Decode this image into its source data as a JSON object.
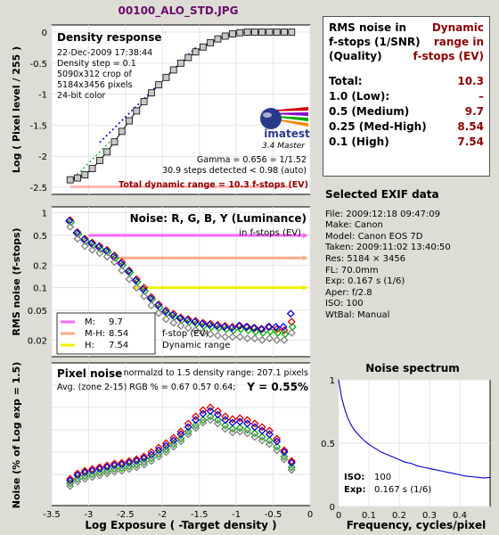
{
  "file_title": "00100_ALO_STD.JPG",
  "colors": {
    "background": "#ddddd5",
    "title": "#6a0a6a",
    "accent_red": "#8b0000",
    "red": "#e00000",
    "green": "#00b000",
    "blue": "#0000e0",
    "gray": "#808080",
    "magenta": "#ff66ff",
    "salmon": "#ffaa88",
    "yellow": "#f0f000"
  },
  "density_panel": {
    "title": "Density response",
    "info_lines": [
      "22-Dec-2009 17:38:44",
      "Density step = 0.1",
      "5090x312 crop of",
      "5184x3456 pixels",
      "24-bit color"
    ],
    "logo_text": "imatest",
    "logo_sub": "3.4  Master",
    "gamma_text": "Gamma = 0.656 = 1/1.52",
    "steps_text": "30.9 steps detected < 0.98 (auto)",
    "dynamic_range_text": "Total dynamic range = 10.3 f-stops (EV)",
    "ylabel": "Log ( Pixel level / 255 )"
  },
  "rms_table": {
    "header_left": [
      "RMS noise in",
      "f-stops (1/SNR)",
      "(Quality)"
    ],
    "header_right": [
      "Dynamic",
      "range in",
      "f-stops (EV)"
    ],
    "rows": [
      {
        "label": "Total:",
        "value": "10.3"
      },
      {
        "label": "1.0   (Low):",
        "value": "–"
      },
      {
        "label": "0.5   (Medium)",
        "value": "9.7"
      },
      {
        "label": "0.25 (Med-High)",
        "value": "8.54"
      },
      {
        "label": "0.1   (High)",
        "value": "7.54"
      }
    ]
  },
  "noise_panel": {
    "title": "Noise: R, G, B, Y (Luminance)",
    "subtitle": "in f-stops (EV)",
    "ylabel": "RMS noise (f-stops)",
    "legend": [
      {
        "label": "M:",
        "value": "9.7",
        "color": "#ff66ff"
      },
      {
        "label": "M-H:",
        "value": "8.54",
        "color": "#ffaa88"
      },
      {
        "label": "H:",
        "value": "7.54",
        "color": "#f0f000"
      }
    ],
    "legend_note1": "f-stop (EV)",
    "legend_note2": "Dynamic range"
  },
  "exif": {
    "title": "Selected EXIF data",
    "lines": [
      "File:  2009:12:18 09:47:09",
      "Make:  Canon",
      "Model: Canon EOS 7D",
      "Taken:  2009:11:02 13:40:50",
      "Res:   5184 × 3456",
      "FL:  70.0mm",
      "Exp:  0.167 s  (1/6)",
      "Aper:  f/2.8",
      "ISO:   100",
      "WtBal: Manual"
    ]
  },
  "pixel_panel": {
    "title": "Pixel noise",
    "norm_text": "normalzd to 1.5 density range: 207.1 pixels",
    "avg_text": "Avg. (zone 2-15) RGB % = 0.67  0.57  0.64;",
    "y_text": "Y = 0.55%",
    "ylabel": "Noise (% of Log exp = 1.5)",
    "xlabel": "Log Exposure ( -Target density )"
  },
  "spectrum_panel": {
    "title": "Noise spectrum",
    "iso_label": "ISO:",
    "iso_value": "100",
    "exp_label": "Exp:",
    "exp_value": "0.167 s  (1/6)",
    "xlabel": "Frequency, cycles/pixel"
  },
  "chart_data": [
    {
      "type": "scatter",
      "name": "density_response",
      "xlim": [
        -3.5,
        0
      ],
      "ylim": [
        -2.5,
        0
      ],
      "x_ticks": [
        -3.5,
        -3,
        -2.5,
        -2,
        -1.5,
        -1,
        -0.5,
        0
      ],
      "x_tick_labels": [
        "-3.5",
        "-3",
        "-2.5",
        "-2",
        "-1.5",
        "-1",
        "-0.5",
        "0"
      ],
      "y_ticks": [
        -2.5,
        -2,
        -1.5,
        -1,
        -0.5,
        0
      ],
      "y_tick_labels": [
        "-2.5",
        "-2",
        "-1.5",
        "-1",
        "-0.5",
        "0"
      ],
      "x": [
        -3.25,
        -3.15,
        -3.05,
        -2.95,
        -2.85,
        -2.75,
        -2.65,
        -2.55,
        -2.45,
        -2.35,
        -2.25,
        -2.15,
        -2.05,
        -1.95,
        -1.85,
        -1.75,
        -1.65,
        -1.55,
        -1.45,
        -1.35,
        -1.25,
        -1.15,
        -1.05,
        -0.95,
        -0.85,
        -0.75,
        -0.65,
        -0.55,
        -0.45,
        -0.35,
        -0.25
      ],
      "y": [
        -2.38,
        -2.35,
        -2.3,
        -2.2,
        -2.07,
        -1.93,
        -1.77,
        -1.6,
        -1.43,
        -1.27,
        -1.12,
        -0.98,
        -0.85,
        -0.73,
        -0.61,
        -0.5,
        -0.41,
        -0.32,
        -0.24,
        -0.17,
        -0.11,
        -0.065,
        -0.03,
        -0.01,
        0,
        0,
        0,
        0,
        0,
        0,
        0
      ],
      "gamma_line": {
        "x": [
          -2.85,
          -1.55
        ],
        "y": [
          -1.78,
          -0.25
        ]
      },
      "dr_line": {
        "x": [
          -3.25,
          -0.25
        ],
        "y": [
          -2.35,
          -2.35
        ]
      }
    },
    {
      "type": "scatter",
      "name": "rms_noise_fstops",
      "yscale": "log",
      "xlim": [
        -3.5,
        0
      ],
      "ylim": [
        0.012,
        1.2
      ],
      "y_ticks": [
        1,
        0.5,
        0.2,
        0.1,
        0.05,
        0.02
      ],
      "y_tick_labels": [
        "1",
        "0.5",
        "0.2",
        "0.1",
        "0.05",
        "0.02"
      ],
      "x": [
        -3.25,
        -3.15,
        -3.05,
        -2.95,
        -2.85,
        -2.75,
        -2.65,
        -2.55,
        -2.45,
        -2.35,
        -2.25,
        -2.15,
        -2.05,
        -1.95,
        -1.85,
        -1.75,
        -1.65,
        -1.55,
        -1.45,
        -1.35,
        -1.25,
        -1.15,
        -1.05,
        -0.95,
        -0.85,
        -0.75,
        -0.65,
        -0.55,
        -0.45,
        -0.35,
        -0.25
      ],
      "series": [
        {
          "name": "R",
          "color": "#e00000",
          "values": [
            0.8,
            0.55,
            0.45,
            0.4,
            0.36,
            0.32,
            0.27,
            0.22,
            0.17,
            0.13,
            0.1,
            0.075,
            0.06,
            0.05,
            0.045,
            0.04,
            0.038,
            0.036,
            0.034,
            0.033,
            0.032,
            0.031,
            0.03,
            0.031,
            0.03,
            0.029,
            0.028,
            0.03,
            0.028,
            0.027,
            0.035
          ]
        },
        {
          "name": "G",
          "color": "#00b000",
          "values": [
            0.75,
            0.52,
            0.42,
            0.37,
            0.33,
            0.3,
            0.25,
            0.2,
            0.16,
            0.12,
            0.09,
            0.07,
            0.055,
            0.046,
            0.041,
            0.037,
            0.035,
            0.033,
            0.031,
            0.03,
            0.029,
            0.028,
            0.027,
            0.028,
            0.027,
            0.026,
            0.025,
            0.026,
            0.025,
            0.024,
            0.03
          ]
        },
        {
          "name": "B",
          "color": "#0000e0",
          "values": [
            0.78,
            0.54,
            0.44,
            0.39,
            0.35,
            0.31,
            0.26,
            0.21,
            0.165,
            0.125,
            0.095,
            0.072,
            0.058,
            0.048,
            0.043,
            0.039,
            0.037,
            0.035,
            0.033,
            0.032,
            0.031,
            0.03,
            0.029,
            0.031,
            0.03,
            0.029,
            0.028,
            0.03,
            0.03,
            0.03,
            0.045
          ]
        },
        {
          "name": "Y",
          "color": "#808080",
          "values": [
            0.65,
            0.45,
            0.36,
            0.32,
            0.29,
            0.26,
            0.22,
            0.17,
            0.13,
            0.1,
            0.077,
            0.058,
            0.046,
            0.038,
            0.034,
            0.031,
            0.029,
            0.027,
            0.025,
            0.024,
            0.023,
            0.022,
            0.022,
            0.022,
            0.021,
            0.021,
            0.02,
            0.021,
            0.02,
            0.02,
            0.025
          ]
        }
      ],
      "dr_bars": [
        {
          "name": "M",
          "level": 0.5,
          "x_start": -3.0,
          "color": "#ff66ff"
        },
        {
          "name": "M-H",
          "level": 0.25,
          "x_start": -2.65,
          "color": "#ffaa88"
        },
        {
          "name": "H",
          "level": 0.1,
          "x_start": -2.4,
          "color": "#f0f000"
        }
      ]
    },
    {
      "type": "scatter",
      "name": "pixel_noise",
      "xlim": [
        -3.5,
        0
      ],
      "x_ticks": [
        -3.5,
        -3,
        -2.5,
        -2,
        -1.5,
        -1,
        -0.5,
        0
      ],
      "x_tick_labels": [
        "-3.5",
        "-3",
        "-2.5",
        "-2",
        "-1.5",
        "-1",
        "-0.5",
        "0"
      ],
      "ylim": [
        0,
        1.5
      ],
      "x": [
        -3.25,
        -3.15,
        -3.05,
        -2.95,
        -2.85,
        -2.75,
        -2.65,
        -2.55,
        -2.45,
        -2.35,
        -2.25,
        -2.15,
        -2.05,
        -1.95,
        -1.85,
        -1.75,
        -1.65,
        -1.55,
        -1.45,
        -1.35,
        -1.25,
        -1.15,
        -1.05,
        -0.95,
        -0.85,
        -0.75,
        -0.65,
        -0.55,
        -0.45,
        -0.35,
        -0.25
      ],
      "series": [
        {
          "name": "R",
          "color": "#e00000",
          "values": [
            0.2,
            0.26,
            0.29,
            0.31,
            0.33,
            0.35,
            0.37,
            0.38,
            0.4,
            0.42,
            0.45,
            0.5,
            0.55,
            0.6,
            0.66,
            0.73,
            0.82,
            0.9,
            0.97,
            1.0,
            0.96,
            0.9,
            0.87,
            0.88,
            0.86,
            0.82,
            0.78,
            0.74,
            0.65,
            0.52,
            0.4
          ]
        },
        {
          "name": "G",
          "color": "#00b000",
          "values": [
            0.15,
            0.2,
            0.23,
            0.25,
            0.27,
            0.29,
            0.31,
            0.32,
            0.34,
            0.36,
            0.39,
            0.43,
            0.48,
            0.53,
            0.59,
            0.65,
            0.73,
            0.8,
            0.86,
            0.9,
            0.86,
            0.8,
            0.76,
            0.77,
            0.75,
            0.71,
            0.67,
            0.63,
            0.56,
            0.45,
            0.33
          ]
        },
        {
          "name": "B",
          "color": "#0000e0",
          "values": [
            0.18,
            0.24,
            0.27,
            0.29,
            0.31,
            0.33,
            0.35,
            0.36,
            0.38,
            0.4,
            0.43,
            0.47,
            0.52,
            0.57,
            0.63,
            0.7,
            0.78,
            0.86,
            0.93,
            0.96,
            0.92,
            0.86,
            0.83,
            0.84,
            0.82,
            0.78,
            0.74,
            0.7,
            0.62,
            0.5,
            0.38
          ]
        },
        {
          "name": "Y",
          "color": "#808080",
          "values": [
            0.12,
            0.17,
            0.2,
            0.22,
            0.24,
            0.26,
            0.28,
            0.29,
            0.31,
            0.33,
            0.36,
            0.4,
            0.45,
            0.5,
            0.56,
            0.62,
            0.7,
            0.77,
            0.83,
            0.86,
            0.82,
            0.76,
            0.72,
            0.73,
            0.71,
            0.67,
            0.63,
            0.59,
            0.52,
            0.42,
            0.3
          ]
        }
      ]
    },
    {
      "type": "line",
      "name": "noise_spectrum",
      "xlim": [
        0,
        0.5
      ],
      "x_ticks": [
        0,
        0.1,
        0.2,
        0.3,
        0.4
      ],
      "x_tick_labels": [
        "0",
        "0.1",
        "0.2",
        "0.3",
        "0.4"
      ],
      "ylim": [
        0,
        1
      ],
      "y_ticks": [
        0,
        0.5,
        1
      ],
      "y_tick_labels": [
        "0",
        "0.5",
        "1"
      ],
      "x": [
        0,
        0.01,
        0.02,
        0.03,
        0.04,
        0.05,
        0.06,
        0.08,
        0.1,
        0.12,
        0.14,
        0.16,
        0.18,
        0.2,
        0.22,
        0.24,
        0.26,
        0.28,
        0.3,
        0.32,
        0.34,
        0.36,
        0.38,
        0.4,
        0.42,
        0.44,
        0.46,
        0.48,
        0.5
      ],
      "y": [
        1.0,
        0.86,
        0.77,
        0.7,
        0.65,
        0.61,
        0.58,
        0.53,
        0.49,
        0.46,
        0.43,
        0.41,
        0.39,
        0.37,
        0.35,
        0.34,
        0.32,
        0.31,
        0.3,
        0.29,
        0.28,
        0.27,
        0.26,
        0.25,
        0.24,
        0.235,
        0.23,
        0.225,
        0.23
      ]
    }
  ]
}
